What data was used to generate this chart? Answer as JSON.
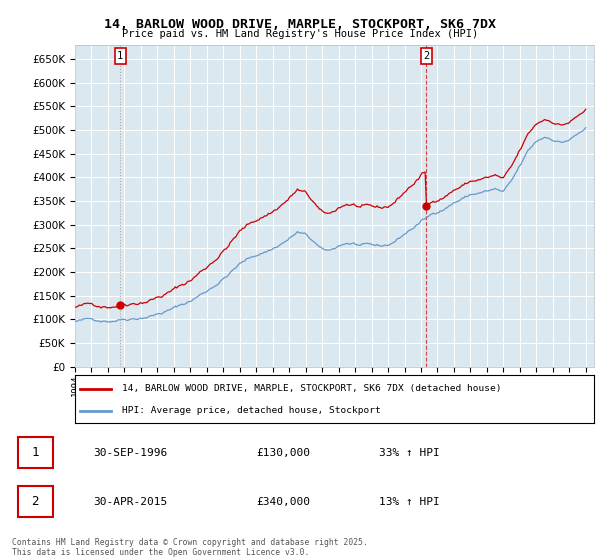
{
  "title": "14, BARLOW WOOD DRIVE, MARPLE, STOCKPORT, SK6 7DX",
  "subtitle": "Price paid vs. HM Land Registry's House Price Index (HPI)",
  "legend_label1": "14, BARLOW WOOD DRIVE, MARPLE, STOCKPORT, SK6 7DX (detached house)",
  "legend_label2": "HPI: Average price, detached house, Stockport",
  "annotation1_date": "30-SEP-1996",
  "annotation1_price": "£130,000",
  "annotation1_hpi": "33% ↑ HPI",
  "annotation2_date": "30-APR-2015",
  "annotation2_price": "£340,000",
  "annotation2_hpi": "13% ↑ HPI",
  "footer": "Contains HM Land Registry data © Crown copyright and database right 2025.\nThis data is licensed under the Open Government Licence v3.0.",
  "ylim": [
    0,
    680000
  ],
  "yticks": [
    0,
    50000,
    100000,
    150000,
    200000,
    250000,
    300000,
    350000,
    400000,
    450000,
    500000,
    550000,
    600000,
    650000
  ],
  "line_color_red": "#cc0000",
  "line_color_blue": "#6699cc",
  "bg_color": "#dce8f0",
  "grid_color": "#ffffff",
  "fig_bg": "#ffffff",
  "purchase1_x": 1996.75,
  "purchase1_y": 130000,
  "purchase2_x": 2015.33,
  "purchase2_y": 340000,
  "xlim_start": 1994,
  "xlim_end": 2025.5
}
